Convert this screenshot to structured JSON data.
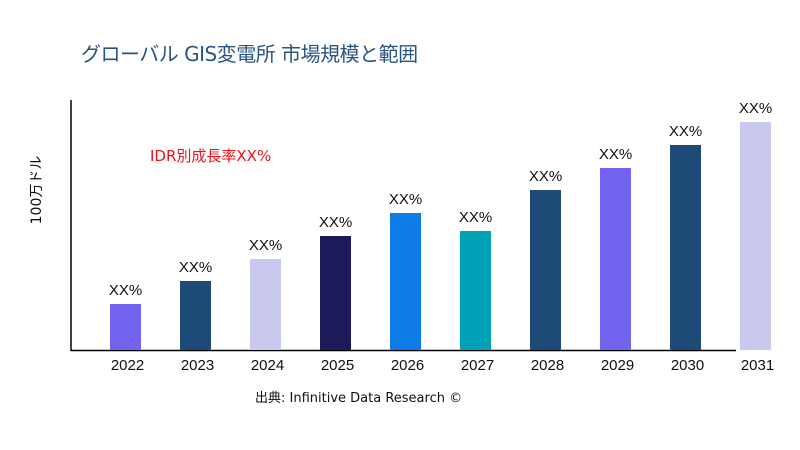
{
  "chart_data": {
    "type": "bar",
    "title": "グローバル GIS変電所 市場規模と範囲",
    "ylabel": "100万ドル",
    "xlabel": "",
    "annotation": "IDR別成長率XX%",
    "source": "出典: Infinitive Data Research ©",
    "categories": [
      "2022",
      "2023",
      "2024",
      "2025",
      "2026",
      "2027",
      "2028",
      "2029",
      "2030",
      "2031"
    ],
    "values": [
      46,
      69,
      91,
      114,
      137,
      119,
      160,
      182,
      205,
      228
    ],
    "data_labels": [
      "XX%",
      "XX%",
      "XX%",
      "XX%",
      "XX%",
      "XX%",
      "XX%",
      "XX%",
      "XX%",
      "XX%"
    ],
    "colors": [
      "#7263f0",
      "#1e4a78",
      "#c9c9f0",
      "#1c1a58",
      "#0f7be6",
      "#00a2b8",
      "#1e4a78",
      "#7263f0",
      "#1e4a78",
      "#c9c9f0"
    ],
    "ylim": [
      0,
      250
    ],
    "grid": false,
    "legend": "none"
  }
}
